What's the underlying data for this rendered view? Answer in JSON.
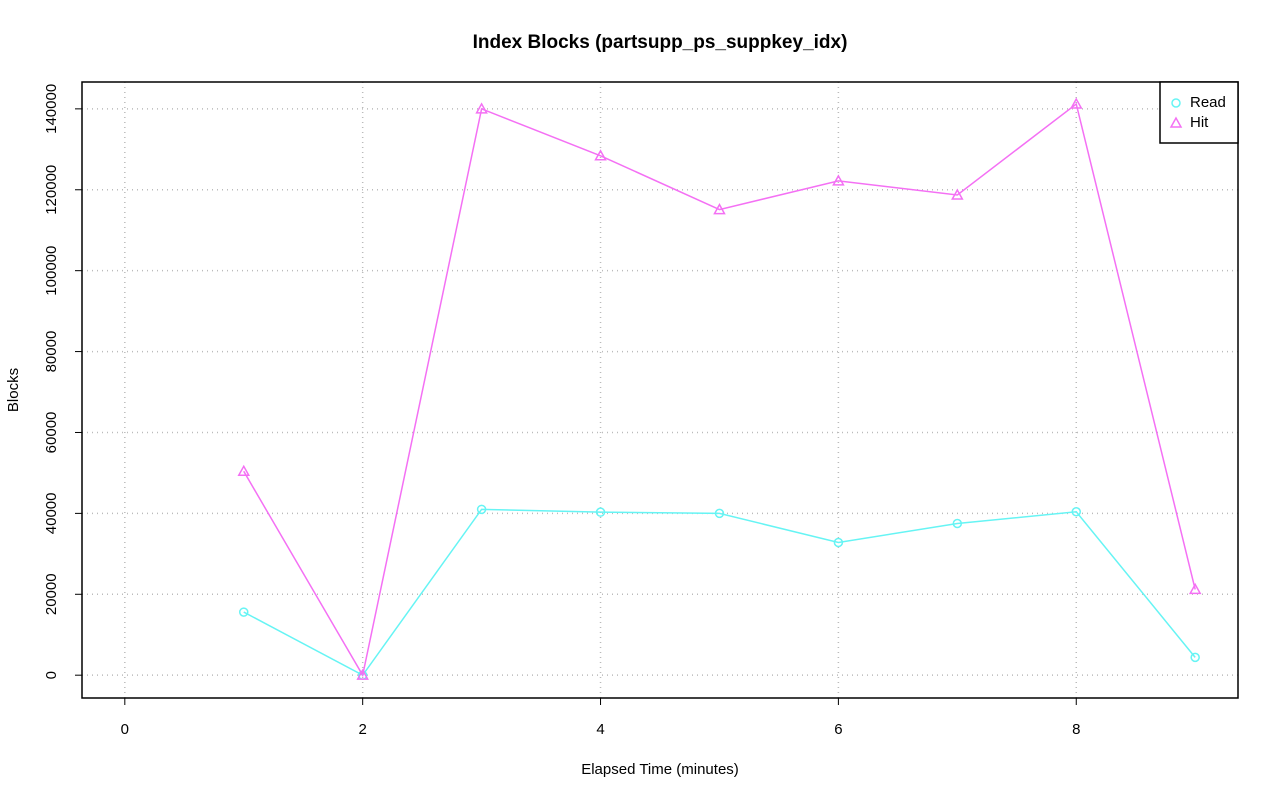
{
  "chart_data": {
    "type": "line",
    "title": "Index Blocks (partsupp_ps_suppkey_idx)",
    "x_label": "Elapsed Time (minutes)",
    "y_label": "Blocks",
    "x": [
      1,
      2,
      3,
      4,
      5,
      6,
      7,
      8,
      9
    ],
    "series": [
      {
        "name": "Read",
        "color": "#66f4f4",
        "marker": "circle",
        "values": [
          15600,
          0,
          41000,
          40300,
          40000,
          32800,
          37500,
          40400,
          4400
        ]
      },
      {
        "name": "Hit",
        "color": "#f470f4",
        "marker": "triangle",
        "values": [
          50400,
          0,
          140000,
          128400,
          115100,
          122200,
          118700,
          141200,
          21200
        ]
      }
    ],
    "xlim": [
      -0.36,
      9.36
    ],
    "xticks": [
      0,
      2,
      4,
      6,
      8
    ],
    "ylim": [
      -5640,
      146640
    ],
    "yticks": [
      0,
      20000,
      40000,
      60000,
      80000,
      100000,
      120000,
      140000
    ],
    "grid": true,
    "legend": "topright"
  }
}
